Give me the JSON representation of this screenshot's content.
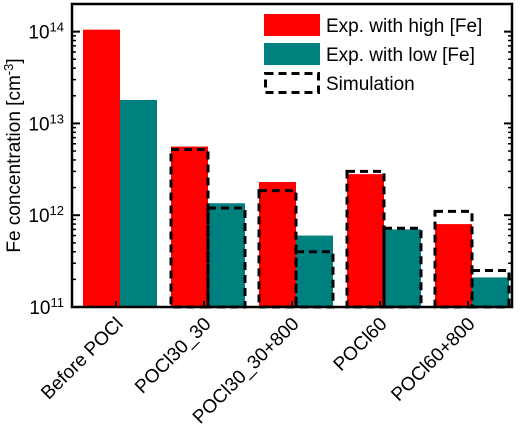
{
  "chart_data": {
    "type": "bar",
    "title": "",
    "xlabel": "",
    "ylabel": "Fe concentration [cm",
    "ylabel_unit_exponent": "-3",
    "y_scale": "log",
    "ylim": [
      100000000000.0,
      200000000000000.0
    ],
    "y_ticks": [
      {
        "value": 100000000000.0,
        "base": "10",
        "exp": "11"
      },
      {
        "value": 1000000000000.0,
        "base": "10",
        "exp": "12"
      },
      {
        "value": 10000000000000.0,
        "base": "10",
        "exp": "13"
      },
      {
        "value": 100000000000000.0,
        "base": "10",
        "exp": "14"
      }
    ],
    "categories": [
      "Before POCl",
      "POCl30_30",
      "POCl30_30+800",
      "POCl60",
      "POCl60+800"
    ],
    "series": [
      {
        "name": "Exp. with high [Fe]",
        "color": "#ff0000",
        "style": "filled",
        "values": [
          105000000000000.0,
          5600000000000.0,
          2300000000000.0,
          2800000000000.0,
          800000000000.0
        ]
      },
      {
        "name": "Exp. with low [Fe]",
        "color": "#007f7f",
        "style": "filled",
        "values": [
          18000000000000.0,
          1350000000000.0,
          600000000000.0,
          700000000000.0,
          210000000000.0
        ]
      },
      {
        "name": "Simulation",
        "color": "#000000",
        "style": "dashed-outline",
        "values": {
          "high": [
            null,
            5200000000000.0,
            1850000000000.0,
            3000000000000.0,
            1100000000000.0
          ],
          "low": [
            null,
            1200000000000.0,
            400000000000.0,
            720000000000.0,
            250000000000.0
          ]
        }
      }
    ],
    "legend_position": "top-right",
    "grid": false
  }
}
